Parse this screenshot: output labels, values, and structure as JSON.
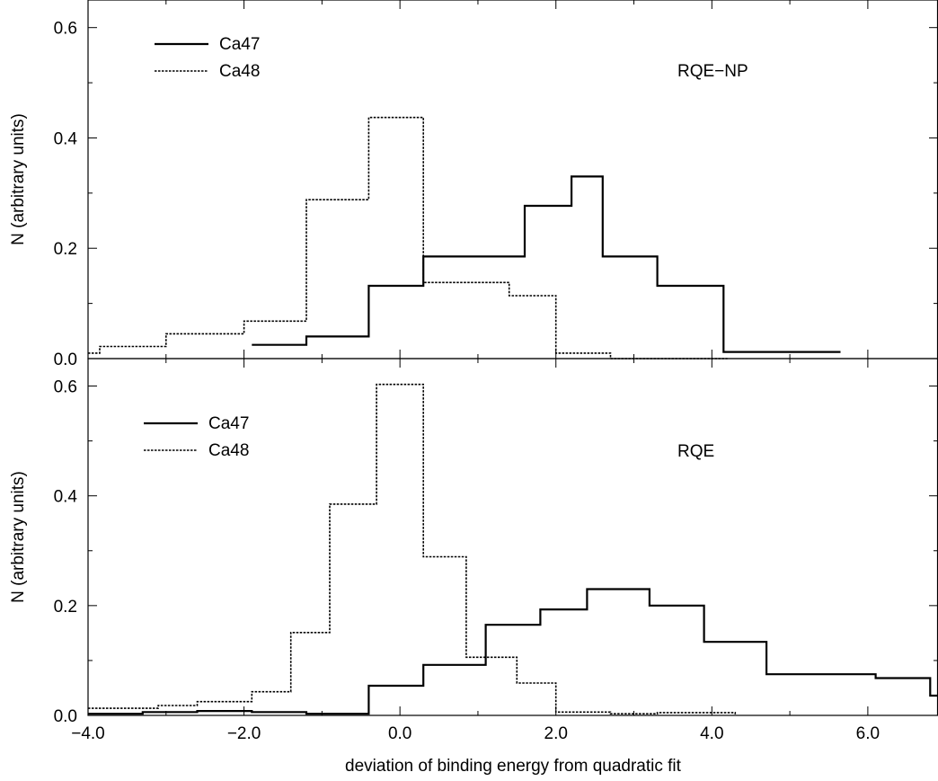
{
  "chart_data": [
    {
      "type": "line",
      "step": true,
      "annotation": "RQE−NP",
      "xlabel": "",
      "ylabel": "N (arbitrary units)",
      "xlim": [
        -4.0,
        6.9
      ],
      "ylim": [
        0.0,
        0.65
      ],
      "yticks": [
        0.0,
        0.2,
        0.4,
        0.6
      ],
      "ytick_labels": [
        "0.0",
        "0.2",
        "0.4",
        "0.6"
      ],
      "legend_position": "top-left",
      "series": [
        {
          "name": "Ca47",
          "style": "solid",
          "color": "#000000",
          "edges": [
            -1.9,
            -1.2,
            -0.9,
            -0.4,
            0.3,
            0.9,
            1.6,
            2.2,
            2.6,
            3.3,
            3.9,
            4.15,
            5.65
          ],
          "values": [
            0.025,
            0.04,
            0.04,
            0.132,
            0.185,
            0.185,
            0.277,
            0.33,
            0.185,
            0.132,
            0.132,
            0.012,
            0.012
          ]
        },
        {
          "name": "Ca48",
          "style": "dotted",
          "color": "#000000",
          "edges": [
            -4.0,
            -3.85,
            -3.0,
            -2.4,
            -2.0,
            -1.4,
            -1.2,
            -0.9,
            -0.4,
            0.3,
            0.5,
            1.4,
            2.0,
            2.7,
            3.9,
            4.2
          ],
          "values": [
            0.01,
            0.022,
            0.045,
            0.045,
            0.068,
            0.068,
            0.288,
            0.288,
            0.437,
            0.138,
            0.138,
            0.114,
            0.01,
            0.0,
            0.0,
            0.0
          ]
        }
      ]
    },
    {
      "type": "line",
      "step": true,
      "annotation": "RQE",
      "xlabel": "deviation of binding energy from quadratic fit",
      "ylabel": "N (arbitrary units)",
      "xlim": [
        -4.0,
        6.9
      ],
      "ylim": [
        0.0,
        0.65
      ],
      "xticks": [
        -4.0,
        -2.0,
        0.0,
        2.0,
        4.0,
        6.0
      ],
      "xtick_labels": [
        "−4.0",
        "−2.0",
        "0.0",
        "2.0",
        "4.0",
        "6.0"
      ],
      "yticks": [
        0.0,
        0.2,
        0.4,
        0.6
      ],
      "ytick_labels": [
        "0.0",
        "0.2",
        "0.4",
        "0.6"
      ],
      "legend_position": "top-left",
      "series": [
        {
          "name": "Ca47",
          "style": "solid",
          "color": "#000000",
          "edges": [
            -4.0,
            -3.3,
            -2.6,
            -1.9,
            -1.2,
            -0.4,
            0.3,
            0.9,
            1.1,
            1.8,
            2.4,
            3.2,
            3.9,
            4.7,
            6.1,
            6.8,
            6.9
          ],
          "values": [
            0.003,
            0.006,
            0.008,
            0.006,
            0.003,
            0.054,
            0.092,
            0.092,
            0.165,
            0.193,
            0.23,
            0.2,
            0.134,
            0.075,
            0.068,
            0.036,
            0.036
          ]
        },
        {
          "name": "Ca48",
          "style": "dotted",
          "color": "#000000",
          "edges": [
            -4.0,
            -3.1,
            -2.6,
            -1.9,
            -1.4,
            -0.9,
            -0.3,
            0.3,
            0.85,
            1.05,
            1.5,
            2.0,
            2.7,
            3.3,
            4.3
          ],
          "values": [
            0.013,
            0.018,
            0.025,
            0.043,
            0.151,
            0.385,
            0.603,
            0.289,
            0.106,
            0.106,
            0.059,
            0.006,
            0.003,
            0.005,
            0.002
          ]
        }
      ]
    }
  ]
}
